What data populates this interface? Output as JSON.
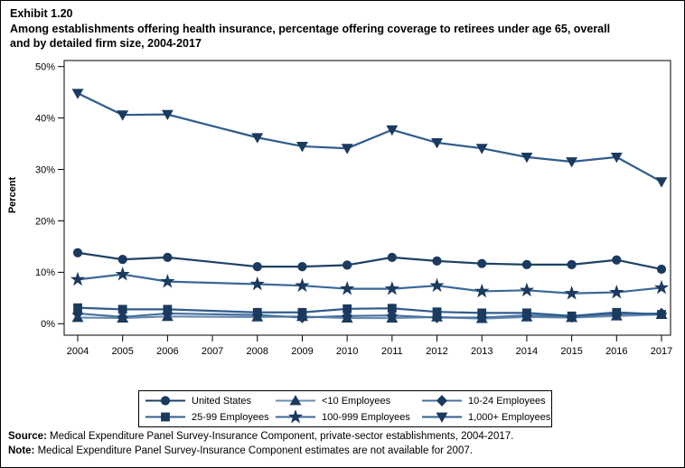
{
  "header": {
    "exhibit": "Exhibit 1.20",
    "title_lines": [
      "Among establishments offering health insurance, percentage offering coverage to retirees under age 65, overall",
      "and by detailed firm size, 2004-2017"
    ]
  },
  "chart_data": {
    "type": "line",
    "title": "",
    "xlabel": "",
    "ylabel": "Percent",
    "categories": [
      "2004",
      "2005",
      "2006",
      "2007",
      "2008",
      "2009",
      "2010",
      "2011",
      "2012",
      "2013",
      "2014",
      "2015",
      "2016",
      "2017"
    ],
    "ylim": [
      0,
      50
    ],
    "yticks": [
      0,
      10,
      20,
      30,
      40,
      50
    ],
    "ytick_suffix": "%",
    "grid": false,
    "missing_data_year": "2007",
    "marker_color": "#1B3A5F",
    "series": [
      {
        "name": "United States",
        "marker": "circle",
        "color": "#1E4164",
        "values": [
          13.8,
          12.5,
          12.9,
          null,
          11.1,
          11.1,
          11.4,
          12.9,
          12.2,
          11.7,
          11.5,
          11.5,
          12.4,
          10.6
        ]
      },
      {
        "name": "<10 Employees",
        "marker": "triangle-up",
        "color": "#6B8CB3",
        "values": [
          1.2,
          1.1,
          1.4,
          null,
          1.3,
          1.4,
          1.1,
          1.1,
          1.3,
          1.0,
          1.3,
          1.2,
          1.5,
          1.8
        ]
      },
      {
        "name": "10-24 Employees",
        "marker": "diamond",
        "color": "#49729F",
        "values": [
          2.0,
          1.3,
          2.0,
          null,
          1.7,
          1.2,
          1.5,
          1.6,
          1.2,
          1.2,
          1.6,
          1.3,
          1.9,
          2.0
        ]
      },
      {
        "name": "25-99 Employees",
        "marker": "square",
        "color": "#2F5C8E",
        "values": [
          3.1,
          2.8,
          2.8,
          null,
          2.2,
          2.2,
          2.9,
          3.0,
          2.3,
          2.1,
          2.1,
          1.5,
          2.2,
          1.8
        ]
      },
      {
        "name": "100-999 Employees",
        "marker": "star",
        "color": "#3A6798",
        "values": [
          8.6,
          9.6,
          8.2,
          null,
          7.7,
          7.4,
          6.8,
          6.8,
          7.4,
          6.3,
          6.5,
          5.9,
          6.1,
          7.0
        ]
      },
      {
        "name": "1,000+ Employees",
        "marker": "triangle-down",
        "color": "#2F5C8E",
        "values": [
          44.8,
          40.6,
          40.7,
          null,
          36.2,
          34.5,
          34.1,
          37.7,
          35.2,
          34.1,
          32.4,
          31.5,
          32.4,
          27.6
        ]
      }
    ],
    "legend": {
      "position": "bottom",
      "columns": 3,
      "border": true
    }
  },
  "footer": {
    "source_label": "Source:",
    "source_text": " Medical Expenditure Panel Survey-Insurance Component, private-sector establishments, 2004-2017.",
    "note_label": "Note:",
    "note_text": " Medical Expenditure Panel Survey-Insurance Component estimates are not available for 2007."
  }
}
